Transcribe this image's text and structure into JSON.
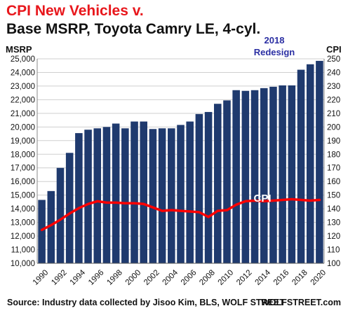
{
  "chart_data": {
    "type": "bar",
    "title": "CPI New Vehicles v.",
    "subtitle": "Base MSRP, Toyota Camry LE, 4-cyl.",
    "y_left_label": "MSRP",
    "y_right_label": "CPI",
    "y_left_range": [
      10000,
      25000
    ],
    "y_right_range": [
      100,
      250
    ],
    "y_left_ticks": [
      "10,000",
      "11,000",
      "12,000",
      "13,000",
      "14,000",
      "15,000",
      "16,000",
      "17,000",
      "18,000",
      "19,000",
      "20,000",
      "21,000",
      "22,000",
      "23,000",
      "24,000",
      "25,000"
    ],
    "y_right_ticks": [
      "100",
      "110",
      "120",
      "130",
      "140",
      "150",
      "160",
      "170",
      "180",
      "190",
      "200",
      "210",
      "220",
      "230",
      "240",
      "250"
    ],
    "x_tick_labels": [
      "1990",
      "1992",
      "1994",
      "1996",
      "1998",
      "2000",
      "2002",
      "2004",
      "2006",
      "2008",
      "2010",
      "2012",
      "2014",
      "2016",
      "2018",
      "2020"
    ],
    "years": [
      1990,
      1991,
      1992,
      1993,
      1994,
      1995,
      1996,
      1997,
      1998,
      1999,
      2000,
      2001,
      2002,
      2003,
      2004,
      2005,
      2006,
      2007,
      2008,
      2009,
      2010,
      2011,
      2012,
      2013,
      2014,
      2015,
      2016,
      2017,
      2018,
      2019,
      2020
    ],
    "series": [
      {
        "name": "MSRP",
        "kind": "bar",
        "axis": "left",
        "color": "#1f3a6e",
        "values": [
          14650,
          15300,
          17000,
          18100,
          19550,
          19800,
          19900,
          20000,
          20250,
          19900,
          20400,
          20400,
          19850,
          19900,
          19900,
          20150,
          20400,
          20950,
          21100,
          21700,
          21950,
          22700,
          22650,
          22700,
          22850,
          22950,
          23050,
          23050,
          24200,
          24600,
          24850
        ]
      },
      {
        "name": "CPI",
        "kind": "line",
        "axis": "right",
        "color": "#ff0000",
        "values": [
          124.5,
          128,
          132,
          136.5,
          140.5,
          143.5,
          145.5,
          144.5,
          144.5,
          144,
          144,
          143.5,
          141,
          138.5,
          139,
          138.5,
          138,
          137.5,
          134,
          138.5,
          139,
          143,
          145.5,
          146,
          145.5,
          146,
          146.5,
          147,
          146.5,
          146,
          146.5
        ]
      }
    ],
    "annotations": {
      "cpi_label": "CPI",
      "redesign_line1": "2018",
      "redesign_line2": "Redesign",
      "redesign_color": "#2b2fa3"
    },
    "grid": true,
    "source": "Source: Industry data collected by Jisoo Kim, BLS, WOLF STREET",
    "brand": "WOLFSTREET.com"
  }
}
